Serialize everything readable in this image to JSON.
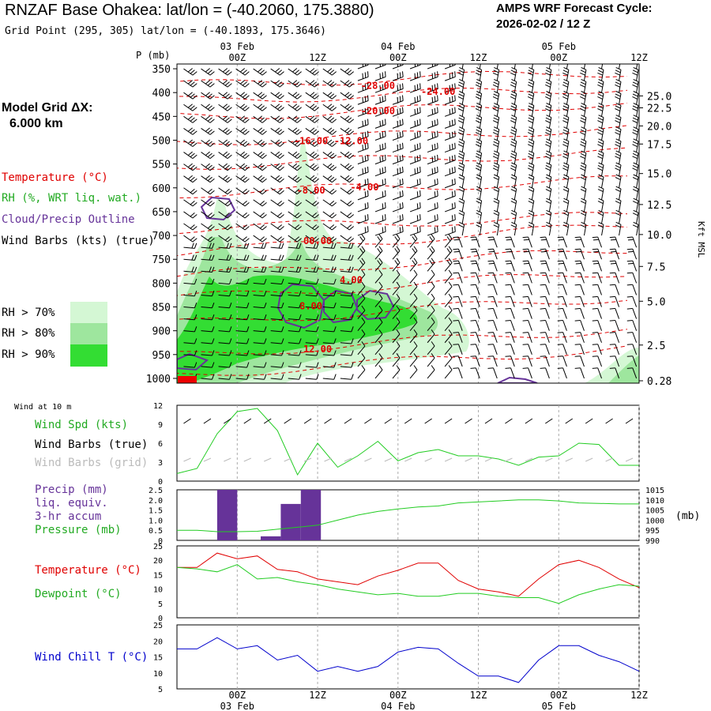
{
  "header": {
    "title": "RNZAF Base Ohakea:  lat/lon = (-40.2060, 175.3880)",
    "subtitle": "Grid Point (295, 305) lat/lon = (-40.1893, 175.3646)",
    "cycle_line1": "AMPS WRF Forecast Cycle:",
    "cycle_line2": "2026-02-02 / 12  Z"
  },
  "left_panel": {
    "model_grid_line1": "Model Grid ΔX:",
    "model_grid_line2": "6.000 km",
    "legend_temperature": "Temperature (°C)",
    "legend_rh": "RH (%, WRT liq. wat.)",
    "legend_cloud": "Cloud/Precip Outline",
    "legend_wind": "Wind Barbs (kts) (true)",
    "rh70": "RH > 70%",
    "rh80": "RH > 80%",
    "rh90": "RH > 90%"
  },
  "colors": {
    "temperature": "#e00000",
    "rh": "#22cc22",
    "cloud": "#663399",
    "rh70": "#d4f7d4",
    "rh80": "#9ee69e",
    "rh90": "#33dd33",
    "windchill": "#0000cc",
    "grid": "#aaaaaa"
  },
  "time_axis": {
    "top_labels": [
      {
        "time": "00Z",
        "date": "03 Feb",
        "hour": 12
      },
      {
        "time": "12Z",
        "date": "",
        "hour": 24
      },
      {
        "time": "00Z",
        "date": "04 Feb",
        "hour": 36
      },
      {
        "time": "12Z",
        "date": "",
        "hour": 48
      },
      {
        "time": "00Z",
        "date": "05 Feb",
        "hour": 60
      },
      {
        "time": "12Z",
        "date": "",
        "hour": 72
      }
    ],
    "start_hour": 3,
    "end_hour": 72
  },
  "chart_data": [
    {
      "type": "heatmap",
      "name": "cross-section",
      "ylabel": "P (mb)",
      "right_label": "Kft MSL",
      "pressure_ticks": [
        350,
        400,
        450,
        500,
        550,
        600,
        650,
        700,
        750,
        800,
        850,
        900,
        950,
        1000
      ],
      "height_ticks": [
        {
          "label": "25.0",
          "p": 407
        },
        {
          "label": "22.5",
          "p": 432
        },
        {
          "label": "20.0",
          "p": 470
        },
        {
          "label": "17.5",
          "p": 508
        },
        {
          "label": "15.0",
          "p": 570
        },
        {
          "label": "12.5",
          "p": 635
        },
        {
          "label": "10.0",
          "p": 698
        },
        {
          "label": "7.5",
          "p": 765
        },
        {
          "label": "5.0",
          "p": 838
        },
        {
          "label": "2.5",
          "p": 930
        },
        {
          "label": "0.28",
          "p": 1005
        }
      ],
      "temperature_labels": [
        {
          "text": "-28.00",
          "hour": 33,
          "p": 392
        },
        {
          "text": "-24.00",
          "hour": 42,
          "p": 405
        },
        {
          "text": "-20.00",
          "hour": 33,
          "p": 445
        },
        {
          "text": "-16.00",
          "hour": 23,
          "p": 508
        },
        {
          "text": "-12.00",
          "hour": 29,
          "p": 508
        },
        {
          "text": "-8.00",
          "hour": 23,
          "p": 612
        },
        {
          "text": "-4.00",
          "hour": 31,
          "p": 605
        },
        {
          "text": "00.00",
          "hour": 24,
          "p": 718
        },
        {
          "text": "4.00",
          "hour": 29,
          "p": 800
        },
        {
          "text": "8.00",
          "hour": 23,
          "p": 855
        },
        {
          "text": "12.00",
          "hour": 24,
          "p": 945
        }
      ]
    },
    {
      "type": "line",
      "name": "wind",
      "title": "Wind at 10 m",
      "legend": [
        "Wind Spd (kts)",
        "Wind Barbs (true)",
        "Wind Barbs (grid)"
      ],
      "yticks": [
        0,
        3,
        6,
        9,
        12
      ],
      "ylim": [
        0,
        12
      ],
      "x": [
        3,
        6,
        9,
        12,
        15,
        18,
        21,
        24,
        27,
        30,
        33,
        36,
        39,
        42,
        45,
        48,
        51,
        54,
        57,
        60,
        63,
        66,
        69,
        72
      ],
      "series": [
        {
          "name": "Wind Spd (kts)",
          "values": [
            1.2,
            2.0,
            7.5,
            11.0,
            11.5,
            8.0,
            1.0,
            6.0,
            2.2,
            4.0,
            6.3,
            3.2,
            4.5,
            5.0,
            4.0,
            4.0,
            3.5,
            2.5,
            3.8,
            4.0,
            6.0,
            5.8,
            2.5,
            2.5
          ]
        }
      ]
    },
    {
      "type": "bar",
      "name": "precip-pressure",
      "legend": [
        "Precip (mm)",
        "liq. equiv.",
        "3-hr accum",
        "Pressure (mb)"
      ],
      "right_label": "(mb)",
      "yticks_left": [
        "0",
        "0.5",
        "1.0",
        "1.5",
        "2.0",
        "2.5"
      ],
      "yticks_right": [
        "990",
        "995",
        "1000",
        "1005",
        "1010",
        "1015"
      ],
      "ylim": [
        0,
        2.5
      ],
      "ylim_right": [
        990,
        1015
      ],
      "precip": [
        {
          "hour": 10.5,
          "value": 2.5
        },
        {
          "hour": 17,
          "value": 0.2
        },
        {
          "hour": 20,
          "value": 1.8
        },
        {
          "hour": 23,
          "value": 2.5
        }
      ],
      "x": [
        3,
        6,
        9,
        12,
        15,
        18,
        21,
        24,
        27,
        30,
        33,
        36,
        39,
        42,
        45,
        48,
        51,
        54,
        57,
        60,
        63,
        66,
        69,
        72
      ],
      "series": [
        {
          "name": "Pressure (mb)",
          "values": [
            995.0,
            995.0,
            994.3,
            994.3,
            994.5,
            995.5,
            996.5,
            997.5,
            1000,
            1002.5,
            1004.3,
            1005.5,
            1006.5,
            1007,
            1008.5,
            1009,
            1009.5,
            1010,
            1010,
            1009.5,
            1008.5,
            1008.3,
            1008,
            1008
          ]
        }
      ]
    },
    {
      "type": "line",
      "name": "temperature-dewpoint",
      "legend": [
        "Temperature (°C)",
        "Dewpoint (°C)"
      ],
      "yticks": [
        0,
        5,
        10,
        15,
        20,
        25
      ],
      "ylim": [
        0,
        25
      ],
      "x": [
        3,
        6,
        9,
        12,
        15,
        18,
        21,
        24,
        27,
        30,
        33,
        36,
        39,
        42,
        45,
        48,
        51,
        54,
        57,
        60,
        63,
        66,
        69,
        72
      ],
      "series": [
        {
          "name": "Temperature (°C)",
          "values": [
            17.5,
            17.5,
            22.5,
            20.5,
            21.5,
            16.8,
            16.0,
            13.5,
            12.5,
            11.5,
            14.5,
            16.5,
            19.0,
            19.0,
            13.0,
            10.0,
            9.0,
            7.5,
            13.5,
            18.5,
            20.0,
            17.5,
            13.5,
            10.5
          ]
        },
        {
          "name": "Dewpoint (°C)",
          "values": [
            17.5,
            17.0,
            16.0,
            18.5,
            13.5,
            14.0,
            12.5,
            11.5,
            10.0,
            9.0,
            8.0,
            8.5,
            7.5,
            7.5,
            8.5,
            8.5,
            7.5,
            7.0,
            7.0,
            5.0,
            8.0,
            10.0,
            11.5,
            11.0
          ]
        }
      ]
    },
    {
      "type": "line",
      "name": "wind-chill",
      "legend": [
        "Wind Chill T (°C)"
      ],
      "yticks": [
        5,
        10,
        15,
        20,
        25
      ],
      "ylim": [
        5,
        25
      ],
      "x": [
        3,
        6,
        9,
        12,
        15,
        18,
        21,
        24,
        27,
        30,
        33,
        36,
        39,
        42,
        45,
        48,
        51,
        54,
        57,
        60,
        63,
        66,
        69,
        72
      ],
      "series": [
        {
          "name": "Wind Chill T (°C)",
          "values": [
            17.5,
            17.5,
            21.0,
            17.5,
            18.5,
            14.0,
            15.5,
            10.5,
            12.0,
            10.5,
            12.0,
            16.5,
            18.0,
            17.5,
            13.0,
            9.0,
            9.0,
            7.0,
            14.0,
            18.5,
            18.5,
            15.5,
            13.5,
            10.5
          ]
        }
      ]
    }
  ]
}
